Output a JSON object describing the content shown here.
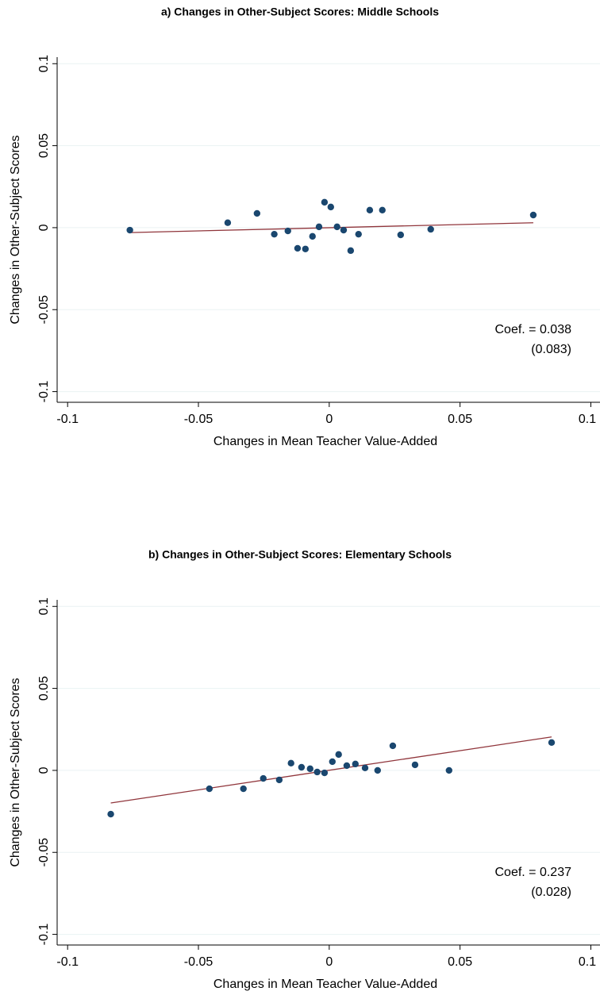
{
  "chart_data": [
    {
      "type": "scatter",
      "title": "a) Changes in Other-Subject Scores: Middle Schools",
      "xlabel": "Changes in Mean Teacher Value-Added",
      "ylabel": "Changes in Other-Subject Scores",
      "x": [
        -0.0762,
        -0.0388,
        -0.0276,
        -0.021,
        -0.0158,
        -0.0121,
        -0.0091,
        -0.0064,
        -0.0039,
        -0.0018,
        0.0006,
        0.003,
        0.0055,
        0.0082,
        0.0112,
        0.0155,
        0.0203,
        0.0273,
        0.0388,
        0.078
      ],
      "y": [
        -0.0015,
        0.003,
        0.0087,
        -0.004,
        -0.002,
        -0.0126,
        -0.013,
        -0.0053,
        0.0005,
        0.0155,
        0.0126,
        0.0005,
        -0.0015,
        -0.014,
        -0.004,
        0.0107,
        0.0107,
        -0.0044,
        -0.001,
        0.0077
      ],
      "color": "#1a476f",
      "fit": {
        "x": [
          -0.0762,
          0.078
        ],
        "y": [
          -0.003,
          0.003
        ],
        "color": "#90353b"
      },
      "annotation": [
        "Coef. = 0.038",
        "(0.083)"
      ],
      "xlim": [
        -0.104,
        0.1035
      ],
      "ylim": [
        -0.1065,
        0.104
      ],
      "xticks": [
        -0.1,
        -0.05,
        0,
        0.05,
        0.1
      ],
      "yticks": [
        -0.1,
        -0.05,
        0,
        0.05,
        0.1
      ],
      "grid": true
    },
    {
      "type": "scatter",
      "title": "b) Changes in Other-Subject Scores: Elementary Schools",
      "xlabel": "Changes in Mean Teacher Value-Added",
      "ylabel": "Changes in Other-Subject Scores",
      "x": [
        -0.0835,
        -0.0458,
        -0.0328,
        -0.0252,
        -0.0191,
        -0.0146,
        -0.0106,
        -0.0073,
        -0.0046,
        -0.0018,
        0.0012,
        0.0036,
        0.0067,
        0.01,
        0.0137,
        0.0185,
        0.0243,
        0.0328,
        0.0458,
        0.085
      ],
      "y": [
        -0.0267,
        -0.0112,
        -0.0112,
        -0.0049,
        -0.0058,
        0.0044,
        0.0019,
        0.001,
        -0.001,
        -0.0015,
        0.0053,
        0.0097,
        0.0029,
        0.0039,
        0.0015,
        0,
        0.015,
        0.0034,
        0,
        0.017
      ],
      "color": "#1a476f",
      "fit": {
        "x": [
          -0.0835,
          0.085
        ],
        "y": [
          -0.0199,
          0.0204
        ],
        "color": "#90353b"
      },
      "annotation": [
        "Coef. = 0.237",
        "(0.028)"
      ],
      "xlim": [
        -0.104,
        0.1035
      ],
      "ylim": [
        -0.1065,
        0.104
      ],
      "xticks": [
        -0.1,
        -0.05,
        0,
        0.05,
        0.1
      ],
      "yticks": [
        -0.1,
        -0.05,
        0,
        0.05,
        0.1
      ],
      "grid": true
    }
  ]
}
